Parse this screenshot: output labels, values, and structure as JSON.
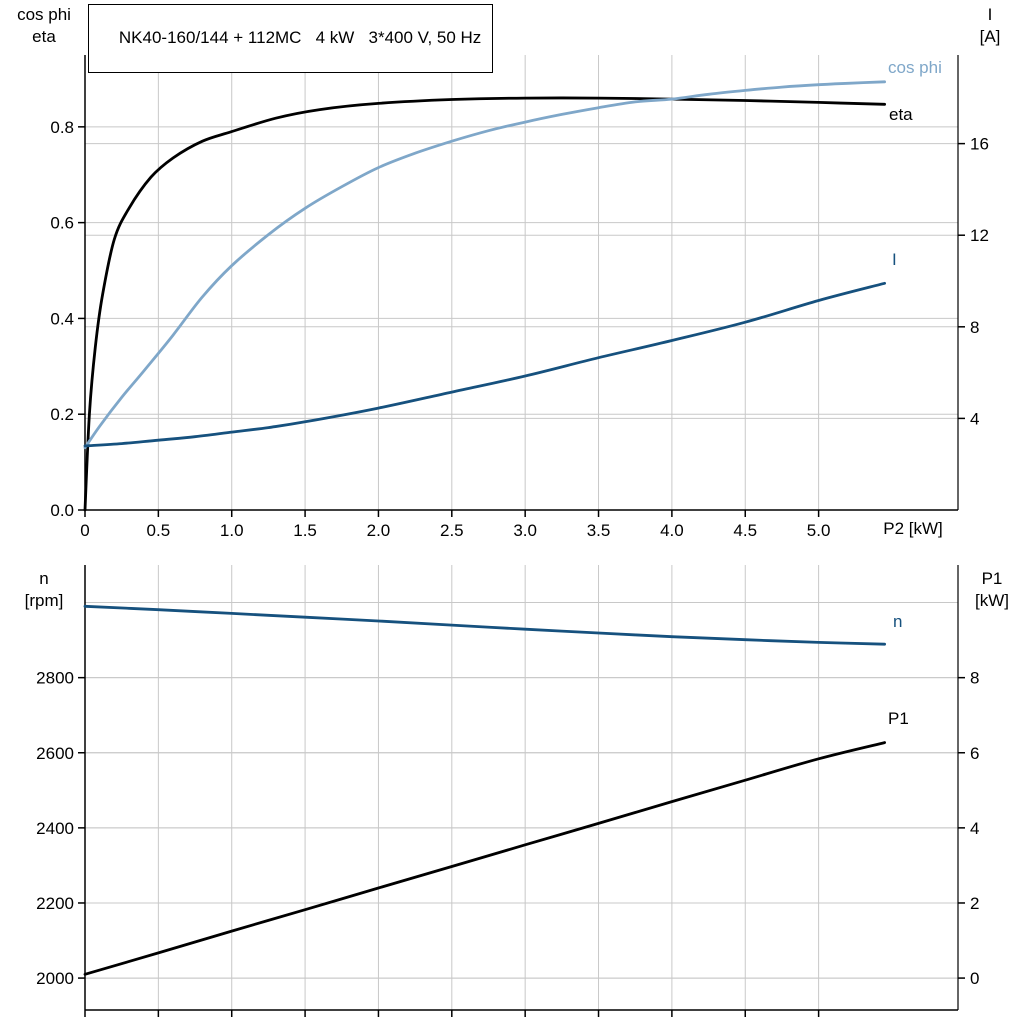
{
  "header": {
    "title": "NK40-160/144 + 112MC   4 kW   3*400 V, 50 Hz"
  },
  "colors": {
    "black": "#000000",
    "dark_blue": "#16517E",
    "light_blue": "#7FA7C9",
    "grid": "#C8C8C8",
    "axis": "#000000"
  },
  "top_chart_labels": {
    "y_left_title": [
      "cos phi",
      "eta"
    ],
    "y_right_title": [
      "I",
      "[A]"
    ],
    "x_title": "P2 [kW]",
    "curve_cos_phi": "cos phi",
    "curve_eta": "eta",
    "curve_current": "I"
  },
  "bottom_chart_labels": {
    "y_left_title": [
      "n",
      "[rpm]"
    ],
    "y_right_title": [
      "P1",
      "[kW]"
    ],
    "curve_n": "n",
    "curve_p1": "P1"
  },
  "chart_data": [
    {
      "type": "line",
      "title": "Motor efficiency, power factor and current vs shaft power",
      "x_axis": {
        "label": "P2 [kW]",
        "range": [
          0,
          5.95
        ],
        "ticks": [
          0,
          0.5,
          1,
          1.5,
          2,
          2.5,
          3,
          3.5,
          4,
          4.5,
          5
        ],
        "tick_labels": [
          "0",
          "0.5",
          "1.0",
          "1.5",
          "2.0",
          "2.5",
          "3.0",
          "3.5",
          "4.0",
          "4.5",
          "5.0"
        ]
      },
      "y_left": {
        "label": "cos phi / eta",
        "range": [
          0,
          0.95
        ],
        "ticks": [
          0,
          0.2,
          0.4,
          0.6,
          0.8
        ],
        "tick_labels": [
          "0.0",
          "0.2",
          "0.4",
          "0.6",
          "0.8"
        ],
        "grid_extra": []
      },
      "y_right": {
        "label": "I [A]",
        "range": [
          0,
          19.87
        ],
        "ticks": [
          4,
          8,
          12,
          16
        ],
        "tick_labels": [
          "4",
          "8",
          "12",
          "16"
        ],
        "grid_extra": []
      },
      "legend_position": "inline-right",
      "grid": true,
      "series": [
        {
          "name": "eta",
          "axis": "left",
          "color": "#000000",
          "points": [
            [
              0,
              0
            ],
            [
              0.03,
              0.2
            ],
            [
              0.07,
              0.34
            ],
            [
              0.12,
              0.45
            ],
            [
              0.2,
              0.565
            ],
            [
              0.3,
              0.63
            ],
            [
              0.45,
              0.695
            ],
            [
              0.6,
              0.735
            ],
            [
              0.8,
              0.77
            ],
            [
              1,
              0.79
            ],
            [
              1.3,
              0.818
            ],
            [
              1.6,
              0.836
            ],
            [
              2,
              0.849
            ],
            [
              2.5,
              0.857
            ],
            [
              3,
              0.86
            ],
            [
              3.5,
              0.86
            ],
            [
              4,
              0.858
            ],
            [
              4.5,
              0.855
            ],
            [
              5,
              0.851
            ],
            [
              5.45,
              0.847
            ]
          ]
        },
        {
          "name": "cos phi",
          "axis": "left",
          "color": "#7FA7C9",
          "points": [
            [
              0,
              0.13
            ],
            [
              0.1,
              0.175
            ],
            [
              0.25,
              0.235
            ],
            [
              0.4,
              0.29
            ],
            [
              0.6,
              0.365
            ],
            [
              0.8,
              0.445
            ],
            [
              1,
              0.51
            ],
            [
              1.25,
              0.575
            ],
            [
              1.5,
              0.63
            ],
            [
              1.75,
              0.675
            ],
            [
              2,
              0.715
            ],
            [
              2.25,
              0.745
            ],
            [
              2.5,
              0.77
            ],
            [
              2.75,
              0.792
            ],
            [
              3,
              0.81
            ],
            [
              3.25,
              0.826
            ],
            [
              3.5,
              0.84
            ],
            [
              3.75,
              0.852
            ],
            [
              4,
              0.858
            ],
            [
              4.25,
              0.868
            ],
            [
              4.5,
              0.876
            ],
            [
              4.75,
              0.883
            ],
            [
              5,
              0.888
            ],
            [
              5.2,
              0.891
            ],
            [
              5.45,
              0.894
            ]
          ]
        },
        {
          "name": "I",
          "axis": "right",
          "color": "#16517E",
          "points": [
            [
              0,
              2.8
            ],
            [
              0.25,
              2.9
            ],
            [
              0.5,
              3.05
            ],
            [
              0.75,
              3.2
            ],
            [
              1,
              3.4
            ],
            [
              1.25,
              3.6
            ],
            [
              1.5,
              3.85
            ],
            [
              2,
              4.45
            ],
            [
              2.5,
              5.15
            ],
            [
              3,
              5.85
            ],
            [
              3.5,
              6.65
            ],
            [
              4,
              7.4
            ],
            [
              4.5,
              8.2
            ],
            [
              5,
              9.15
            ],
            [
              5.45,
              9.9
            ]
          ]
        }
      ]
    },
    {
      "type": "line",
      "title": "Speed and input power vs shaft power",
      "x_axis": {
        "label": "",
        "range": [
          0,
          5.95
        ],
        "ticks": [
          0,
          0.5,
          1,
          1.5,
          2,
          2.5,
          3,
          3.5,
          4,
          4.5,
          5
        ]
      },
      "y_left": {
        "label": "n [rpm]",
        "range": [
          1915,
          3100
        ],
        "ticks": [
          2000,
          2200,
          2400,
          2600,
          2800
        ],
        "tick_labels": [
          "2000",
          "2200",
          "2400",
          "2600",
          "2800"
        ],
        "grid_extra": [
          3000
        ]
      },
      "y_right": {
        "label": "P1 [kW]",
        "range": [
          -0.85,
          11.0
        ],
        "ticks": [
          0,
          2,
          4,
          6,
          8
        ],
        "tick_labels": [
          "0",
          "2",
          "4",
          "6",
          "8"
        ],
        "grid_extra": [
          10
        ]
      },
      "legend_position": "inline-right",
      "grid": true,
      "series": [
        {
          "name": "P1",
          "axis": "right",
          "color": "#000000",
          "points": [
            [
              0,
              0.1
            ],
            [
              0.5,
              0.67
            ],
            [
              1,
              1.25
            ],
            [
              1.5,
              1.82
            ],
            [
              2,
              2.4
            ],
            [
              2.5,
              2.97
            ],
            [
              3,
              3.55
            ],
            [
              3.5,
              4.12
            ],
            [
              4,
              4.7
            ],
            [
              4.5,
              5.27
            ],
            [
              5,
              5.84
            ],
            [
              5.45,
              6.27
            ]
          ]
        },
        {
          "name": "n",
          "axis": "left",
          "color": "#16517E",
          "points": [
            [
              0,
              2990
            ],
            [
              0.5,
              2981
            ],
            [
              1,
              2971
            ],
            [
              1.5,
              2961
            ],
            [
              2,
              2951
            ],
            [
              2.5,
              2940
            ],
            [
              3,
              2929
            ],
            [
              3.5,
              2919
            ],
            [
              4,
              2909
            ],
            [
              4.5,
              2901
            ],
            [
              5,
              2894
            ],
            [
              5.45,
              2889
            ]
          ]
        }
      ]
    }
  ]
}
